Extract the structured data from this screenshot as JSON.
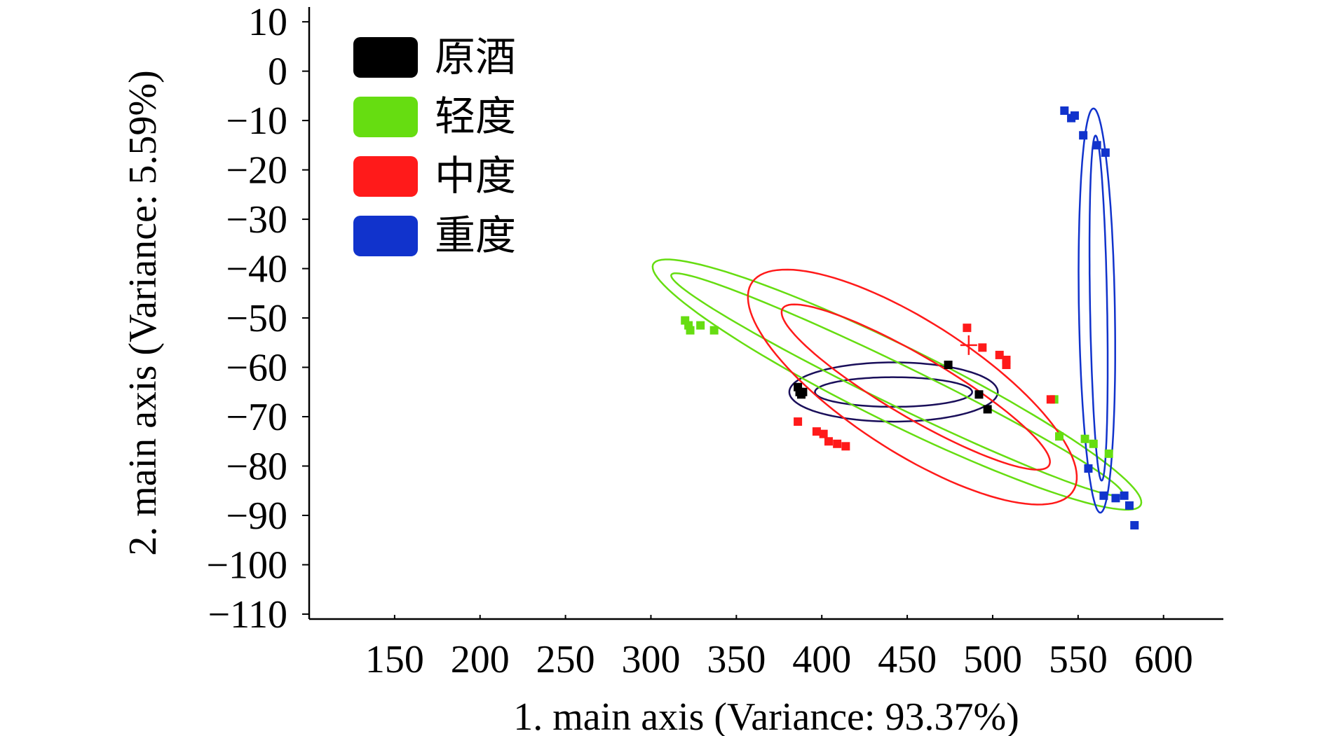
{
  "chart_data": {
    "type": "scatter",
    "xlabel": "1. main axis (Variance: 93.37%)",
    "ylabel": "2. main axis (Variance: 5.59%)",
    "xlim": [
      100,
      635
    ],
    "ylim": [
      -111,
      13
    ],
    "x_ticks": [
      150,
      200,
      250,
      300,
      350,
      400,
      450,
      500,
      550,
      600
    ],
    "y_ticks": [
      10,
      0,
      -10,
      -20,
      -30,
      -40,
      -50,
      -60,
      -70,
      -80,
      -90,
      -100,
      -110
    ],
    "x_tick_labels": [
      "150",
      "200",
      "250",
      "300",
      "350",
      "400",
      "450",
      "500",
      "550",
      "600"
    ],
    "y_tick_labels": [
      "10",
      "0",
      "−10",
      "−20",
      "−30",
      "−40",
      "−50",
      "−60",
      "−70",
      "−80",
      "−90",
      "−100",
      "−110"
    ],
    "legend_position": "top-left",
    "grid": false,
    "series": [
      {
        "name": "原酒",
        "color": "#000000",
        "ellipse_color": "#1a0f5a",
        "points": [
          [
            386,
            -64
          ],
          [
            387,
            -65
          ],
          [
            388,
            -65.5
          ],
          [
            389,
            -65
          ],
          [
            474,
            -59.5
          ],
          [
            492,
            -65.5
          ],
          [
            497,
            -68.5
          ]
        ],
        "ellipses": [
          {
            "center": [
              442,
              -65
            ],
            "rx": 61,
            "ry": 6,
            "angle": 0
          },
          {
            "center": [
              442,
              -65
            ],
            "rx": 46,
            "ry": 3,
            "angle": 0
          }
        ]
      },
      {
        "name": "轻度",
        "color": "#66dd11",
        "ellipse_color": "#66dd11",
        "points": [
          [
            320,
            -50.5
          ],
          [
            322,
            -51.5
          ],
          [
            323,
            -52.5
          ],
          [
            329,
            -51.5
          ],
          [
            337,
            -52.5
          ],
          [
            536,
            -66.5
          ],
          [
            539,
            -74
          ],
          [
            554,
            -74.5
          ],
          [
            559,
            -75.5
          ],
          [
            568,
            -77.5
          ]
        ],
        "ellipses": [
          {
            "center": [
              444,
              -63.5
            ],
            "rx": 145,
            "ry": 8.5,
            "angle": -9.5
          },
          {
            "center": [
              444,
              -63.5
            ],
            "rx": 134,
            "ry": 4.5,
            "angle": -9.5
          }
        ]
      },
      {
        "name": "中度",
        "color": "#ff1a1a",
        "ellipse_color": "#ff1a1a",
        "points": [
          [
            386,
            -71
          ],
          [
            397,
            -73
          ],
          [
            401,
            -73.5
          ],
          [
            404,
            -75
          ],
          [
            409,
            -75.5
          ],
          [
            414,
            -76
          ],
          [
            485,
            -52
          ],
          [
            494,
            -56
          ],
          [
            504,
            -57.5
          ],
          [
            508,
            -58.5
          ],
          [
            508,
            -59.5
          ],
          [
            534,
            -66.5
          ]
        ],
        "ellipses": [
          {
            "center": [
              453,
              -64
            ],
            "rx": 98,
            "ry": 15,
            "angle": -11
          },
          {
            "center": [
              455,
              -64
            ],
            "rx": 80,
            "ry": 7,
            "angle": -11
          }
        ],
        "centroid": [
          486,
          -55.5
        ]
      },
      {
        "name": "重度",
        "color": "#1133cc",
        "ellipse_color": "#1133cc",
        "points": [
          [
            542,
            -8
          ],
          [
            546,
            -9.5
          ],
          [
            548,
            -9
          ],
          [
            553,
            -13
          ],
          [
            561,
            -15
          ],
          [
            566,
            -16.5
          ],
          [
            556,
            -80.5
          ],
          [
            565,
            -86
          ],
          [
            572,
            -86.5
          ],
          [
            577,
            -86
          ],
          [
            580,
            -88
          ],
          [
            583,
            -92
          ]
        ],
        "ellipses": [
          {
            "center": [
              561,
              -48.5
            ],
            "rx": 41,
            "ry": 10.5,
            "angle": -87
          },
          {
            "center": [
              562,
              -48
            ],
            "rx": 35,
            "ry": 5,
            "angle": -87
          }
        ]
      }
    ]
  }
}
